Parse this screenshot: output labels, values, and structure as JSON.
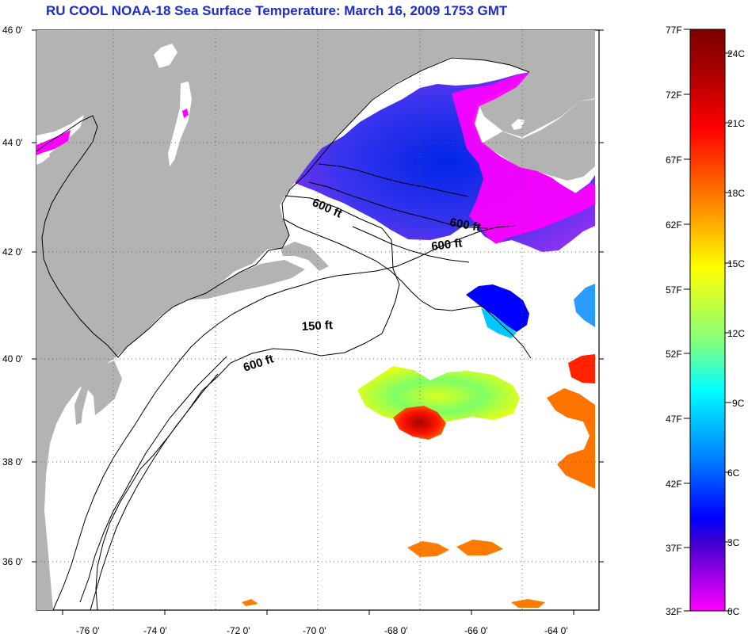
{
  "title": "RU COOL  NOAA-18  Sea Surface Temperature:  March 16, 2009 1753 GMT",
  "map": {
    "latitude_labels": [
      "46 0'",
      "44 0'",
      "42 0'",
      "40 0'",
      "38 0'",
      "36 0'"
    ],
    "longitude_labels": [
      "-76 0'",
      "-74 0'",
      "-72 0'",
      "-70 0'",
      "-68 0'",
      "-66 0'",
      "-64 0'"
    ],
    "contour_labels": [
      "600 ft",
      "600 ft",
      "600 ft",
      "150 ft",
      "600 ft"
    ],
    "land_color": "#b3b3b3",
    "ocean_no_data_color": "#ffffff",
    "grid": "dotted"
  },
  "colorbar": {
    "fahrenheit_labels": [
      "77F",
      "72F",
      "67F",
      "62F",
      "57F",
      "52F",
      "47F",
      "42F",
      "37F",
      "32F"
    ],
    "celsius_labels": [
      "24C",
      "21C",
      "18C",
      "15C",
      "12C",
      "9C",
      "6C",
      "3C",
      "0C"
    ],
    "colors": [
      "#7d0000",
      "#b00000",
      "#ff0000",
      "#ff7c00",
      "#ffff00",
      "#80ff80",
      "#00ffff",
      "#007dff",
      "#0000ff",
      "#3a00cf",
      "#ff00ff"
    ]
  }
}
